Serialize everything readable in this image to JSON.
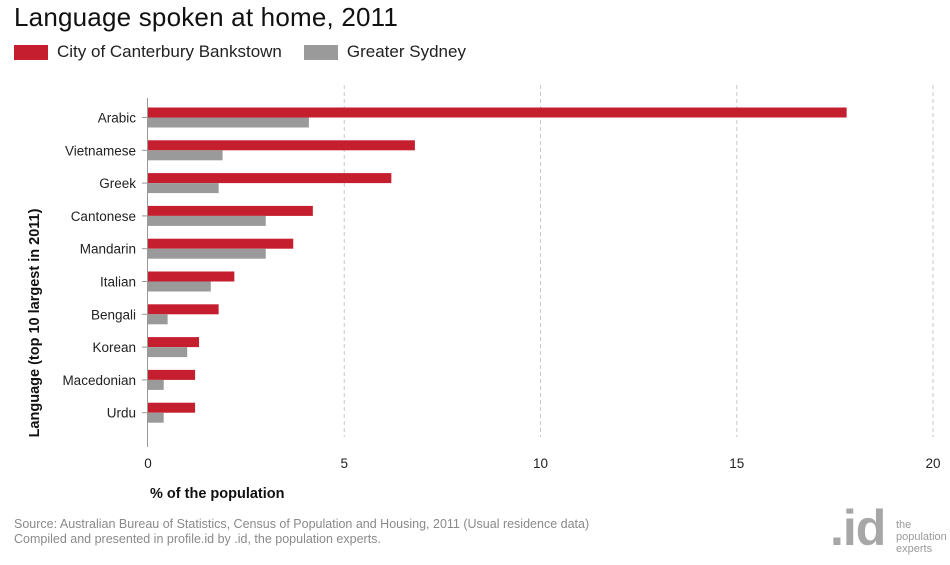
{
  "title": "Language spoken at home, 2011",
  "footer": {
    "source_line1": "Source: Australian Bureau of Statistics, Census of Population and Housing, 2011 (Usual residence data)",
    "source_line2": "Compiled and presented in profile.id by .id, the population experts."
  },
  "logo": {
    "mark": ".id",
    "line1": "the",
    "line2": "population",
    "line3": "experts"
  },
  "colors": {
    "series1": "#c41e2f",
    "series2": "#9a9a9a",
    "grid": "#c8c8c8",
    "axis": "#999999"
  },
  "chart_data": {
    "type": "bar",
    "orientation": "horizontal",
    "title": "Language spoken at home, 2011",
    "xlabel": "% of the population",
    "ylabel": "Language (top 10 largest in 2011)",
    "xlim": [
      0,
      20
    ],
    "xticks": [
      0,
      5,
      10,
      15,
      20
    ],
    "grid": "vertical dashed",
    "legend_position": "top-left",
    "categories": [
      "Arabic",
      "Vietnamese",
      "Greek",
      "Cantonese",
      "Mandarin",
      "Italian",
      "Bengali",
      "Korean",
      "Macedonian",
      "Urdu"
    ],
    "series": [
      {
        "name": "City of Canterbury Bankstown",
        "color": "#c41e2f",
        "values": [
          17.8,
          6.8,
          6.2,
          4.2,
          3.7,
          2.2,
          1.8,
          1.3,
          1.2,
          1.2
        ]
      },
      {
        "name": "Greater Sydney",
        "color": "#9a9a9a",
        "values": [
          4.1,
          1.9,
          1.8,
          3.0,
          3.0,
          1.6,
          0.5,
          1.0,
          0.4,
          0.4
        ]
      }
    ]
  }
}
